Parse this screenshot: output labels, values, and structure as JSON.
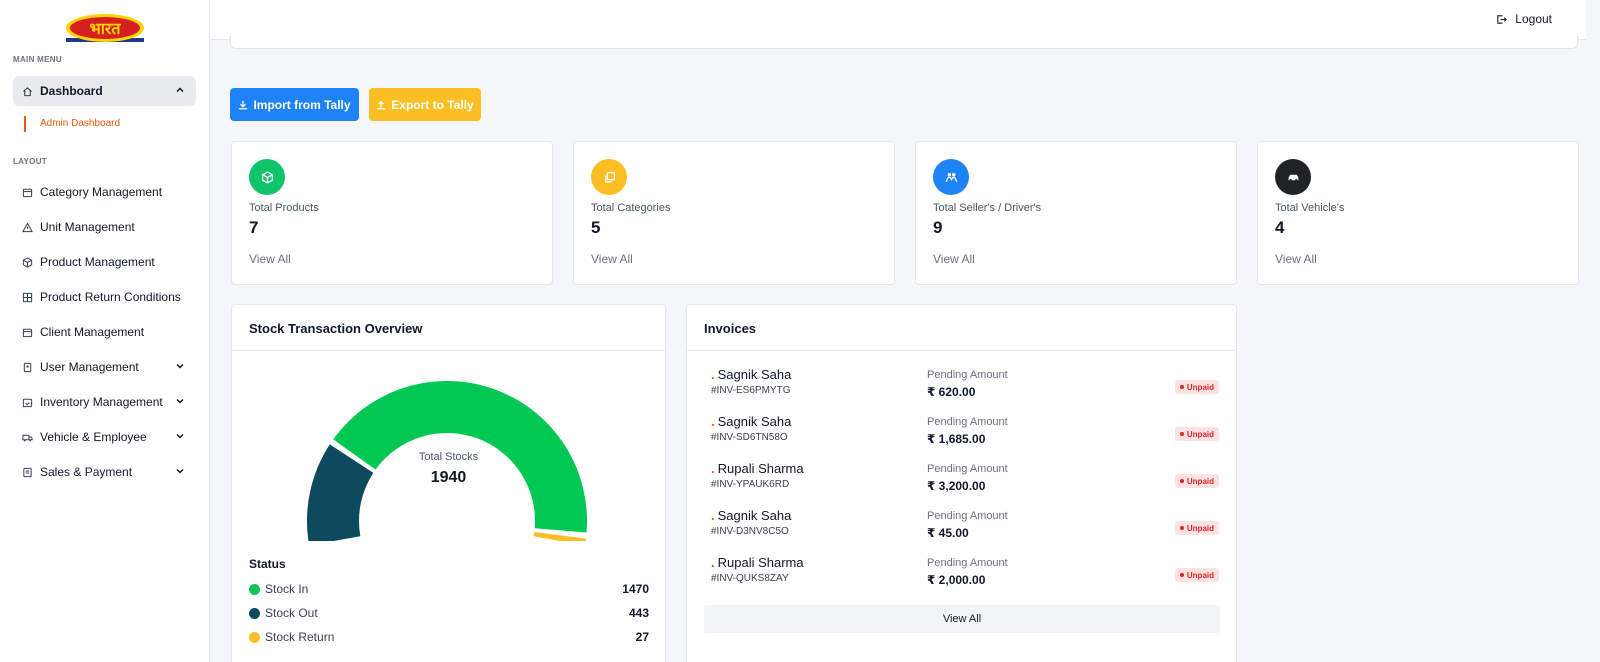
{
  "brand": {
    "logo_text": "भारत",
    "colors": {
      "logo_red": "#d62020",
      "logo_yellow": "#ffd400"
    }
  },
  "sidebar": {
    "main_menu_heading": "MAIN MENU",
    "layout_heading": "LAYOUT",
    "dashboard": {
      "label": "Dashboard",
      "icon": "home-icon",
      "sub_item": "Admin Dashboard"
    },
    "items": [
      {
        "label": "Category Management",
        "icon": "calendar-icon",
        "has_submenu": false
      },
      {
        "label": "Unit Management",
        "icon": "warning-icon",
        "has_submenu": false
      },
      {
        "label": "Product Management",
        "icon": "box-icon",
        "has_submenu": false
      },
      {
        "label": "Product Return Conditions",
        "icon": "grid-icon",
        "has_submenu": false
      },
      {
        "label": "Client Management",
        "icon": "calendar-icon",
        "has_submenu": false
      },
      {
        "label": "User Management",
        "icon": "badge-icon",
        "has_submenu": true
      },
      {
        "label": "Inventory Management",
        "icon": "calendar-check-icon",
        "has_submenu": true
      },
      {
        "label": "Vehicle & Employee",
        "icon": "truck-icon",
        "has_submenu": true
      },
      {
        "label": "Sales & Payment",
        "icon": "receipt-icon",
        "has_submenu": true
      }
    ]
  },
  "topbar": {
    "logout_label": "Logout"
  },
  "actions": {
    "import_label": "Import from Tally",
    "export_label": "Export to Tally"
  },
  "stats": [
    {
      "label": "Total Products",
      "value": "7",
      "link": "View All",
      "icon": "cube-icon",
      "color": "#10c469"
    },
    {
      "label": "Total Categories",
      "value": "5",
      "link": "View All",
      "icon": "copy-icon",
      "color": "#fbbf24"
    },
    {
      "label": "Total Seller's / Driver's",
      "value": "9",
      "link": "View All",
      "icon": "users-icon",
      "color": "#1d83f7"
    },
    {
      "label": "Total Vehicle's",
      "value": "4",
      "link": "View All",
      "icon": "car-icon",
      "color": "#1f2328"
    }
  ],
  "stock_overview": {
    "title": "Stock Transaction Overview",
    "total_label": "Total Stocks",
    "total_value": "1940",
    "status_title": "Status",
    "status": [
      {
        "label": "Stock In",
        "value": "1470",
        "color": "#10c459"
      },
      {
        "label": "Stock Out",
        "value": "443",
        "color": "#0d4a5e"
      },
      {
        "label": "Stock Return",
        "value": "27",
        "color": "#fbbf24"
      }
    ],
    "gauge": {
      "stock_out": 443,
      "stock_in": 1470,
      "stock_return": 27
    }
  },
  "invoices": {
    "title": "Invoices",
    "pending_label": "Pending Amount",
    "view_all_label": "View All",
    "rows": [
      {
        "name": "Sagnik Saha",
        "id": "#INV-ES6PMYTG",
        "amount": "₹ 620.00",
        "status": "Unpaid"
      },
      {
        "name": "Sagnik Saha",
        "id": "#INV-SD6TN58O",
        "amount": "₹ 1,685.00",
        "status": "Unpaid"
      },
      {
        "name": "Rupali Sharma",
        "id": "#INV-YPAUK6RD",
        "amount": "₹ 3,200.00",
        "status": "Unpaid"
      },
      {
        "name": "Sagnik Saha",
        "id": "#INV-D3NV8C5O",
        "amount": "₹ 45.00",
        "status": "Unpaid"
      },
      {
        "name": "Rupali Sharma",
        "id": "#INV-QUKS8ZAY",
        "amount": "₹ 2,000.00",
        "status": "Unpaid"
      }
    ]
  }
}
